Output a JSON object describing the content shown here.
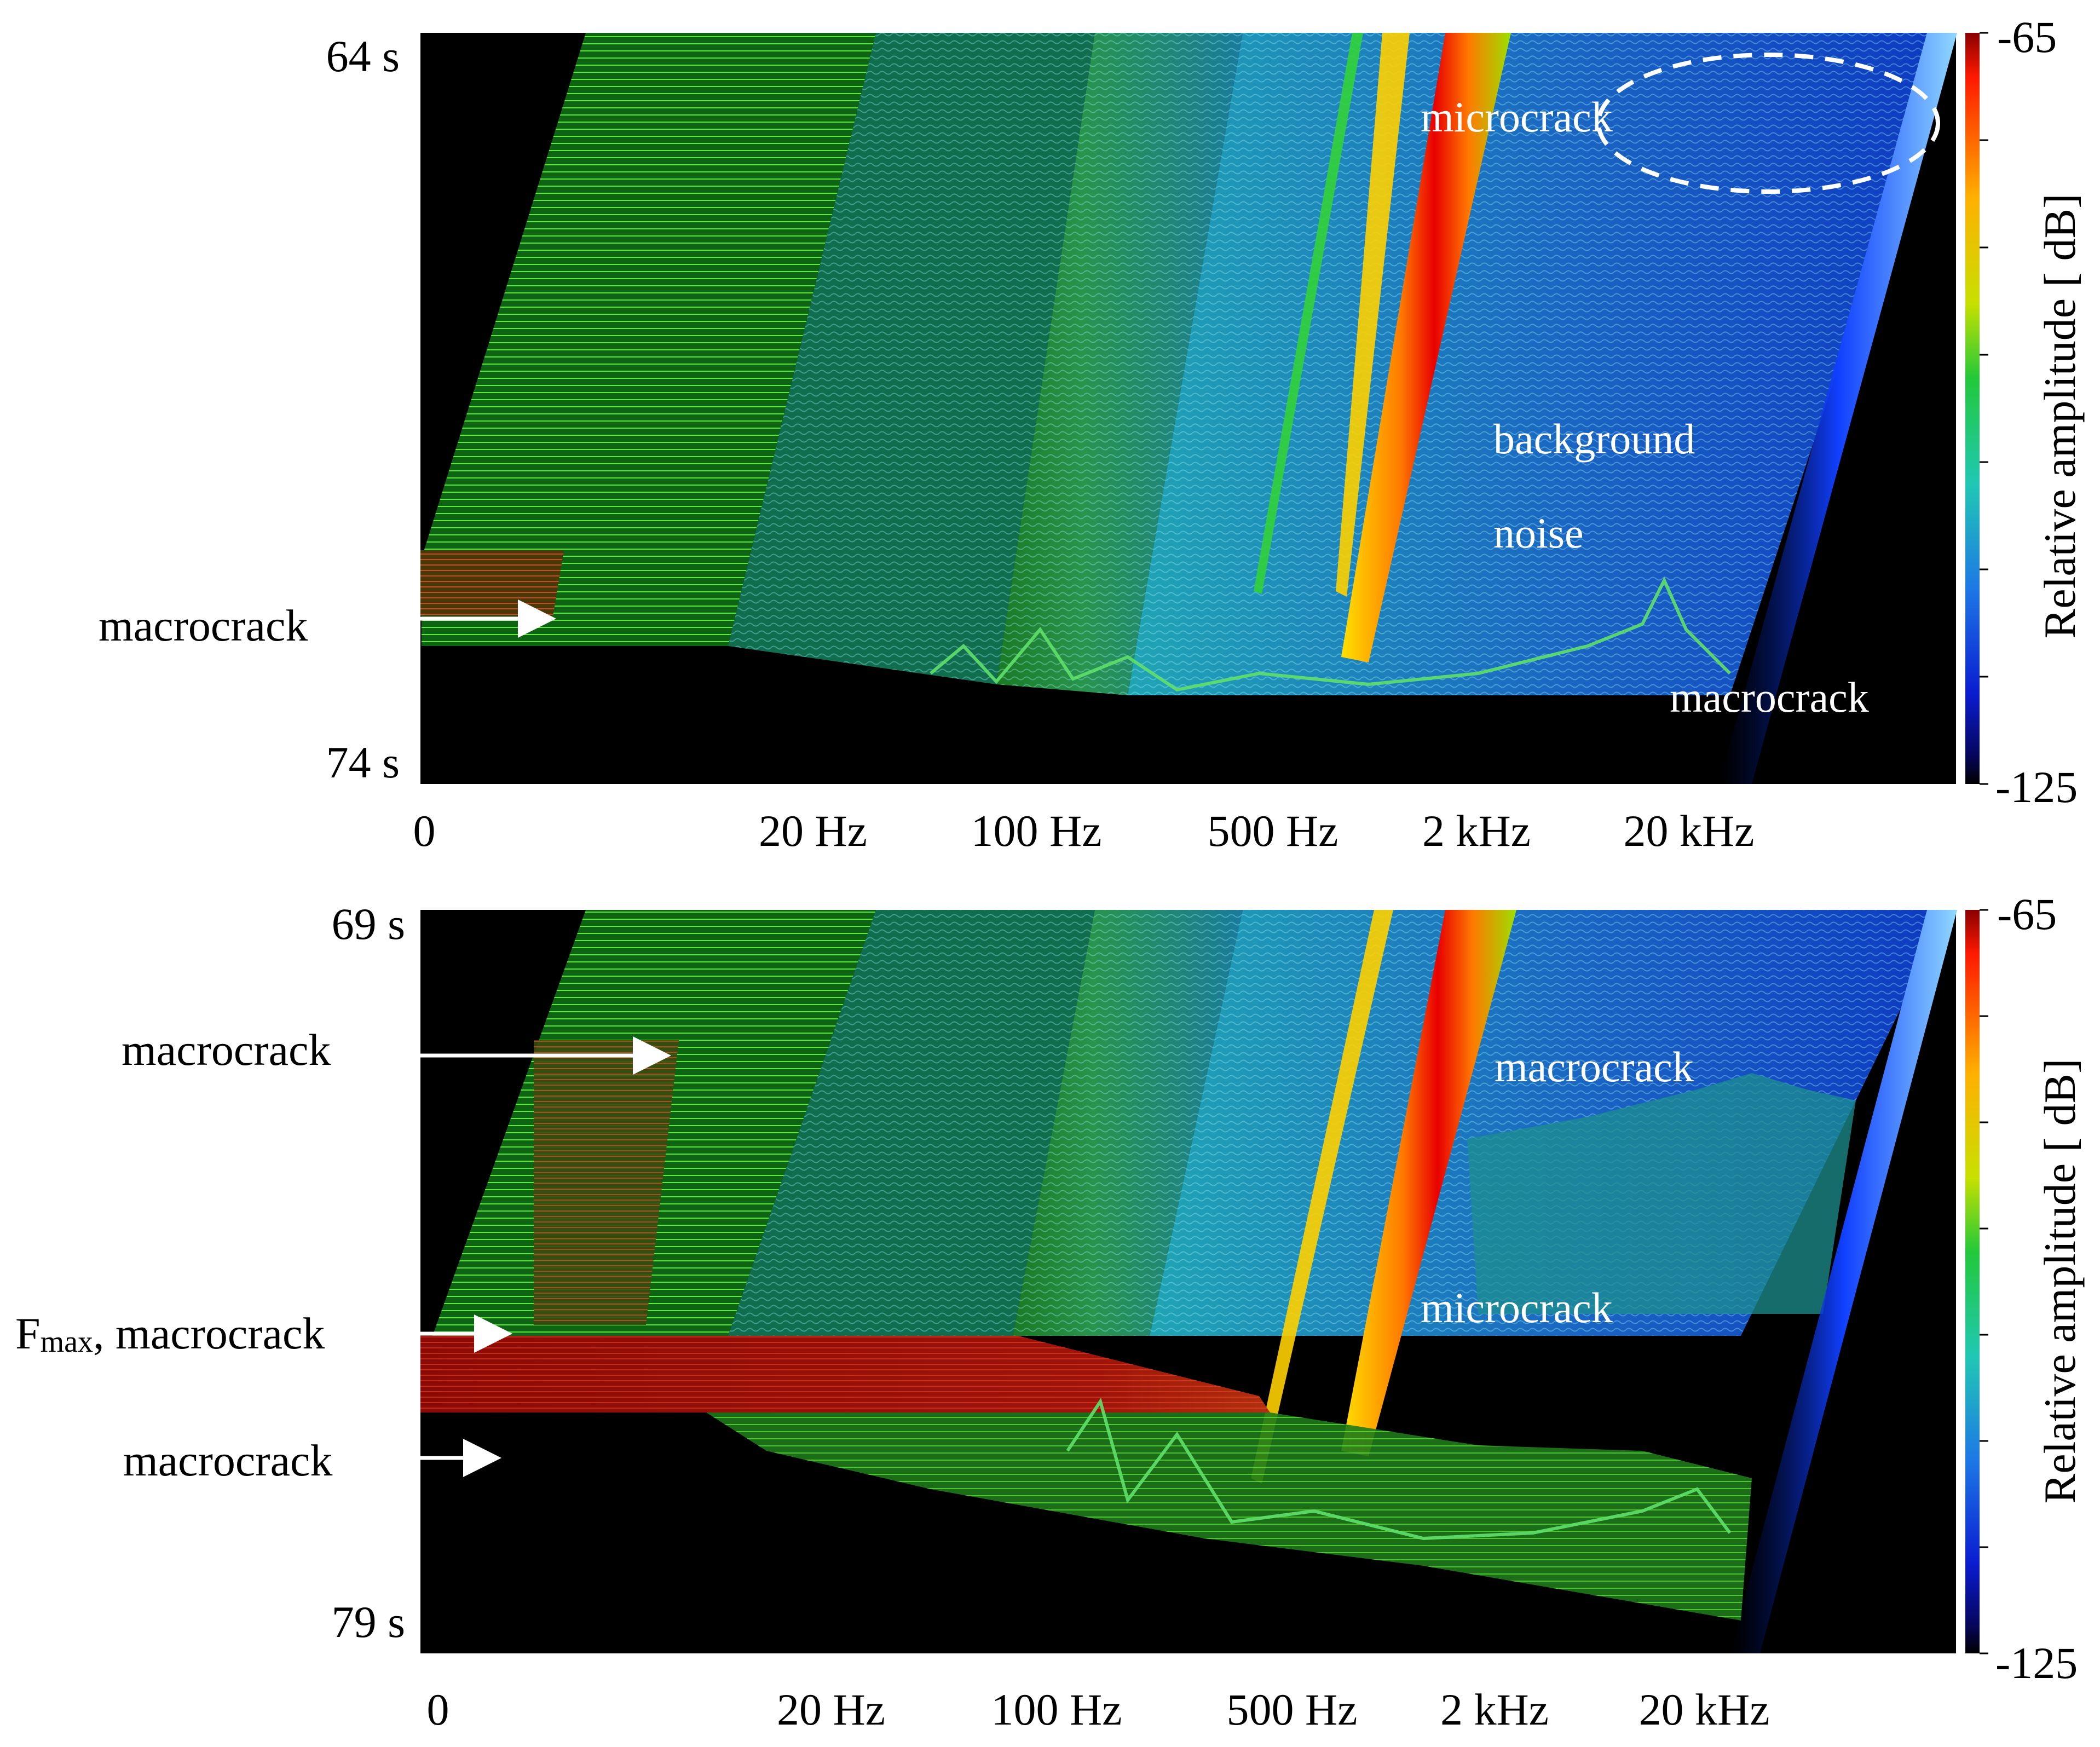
{
  "figure": {
    "panels": [
      {
        "id": "top",
        "time_start": "64 s",
        "time_end": "74 s",
        "x_tick_labels": [
          "0",
          "20 Hz",
          "100 Hz",
          "500 Hz",
          "2 kHz",
          "20 kHz"
        ],
        "colorbar": {
          "label": "Relative amplitude [ dB]",
          "max_label": "-65",
          "min_label": "-125"
        },
        "inner_annotations": [
          {
            "text": "microcrack",
            "highlighted": true
          },
          {
            "text": "background"
          },
          {
            "text": "noise"
          },
          {
            "text": "macrocrack"
          }
        ],
        "outer_annotations": [
          {
            "text": "macrocrack",
            "arrow": true
          }
        ]
      },
      {
        "id": "bottom",
        "time_start": "69 s",
        "time_end": "79 s",
        "x_tick_labels": [
          "0",
          "20 Hz",
          "100 Hz",
          "500 Hz",
          "2 kHz",
          "20 kHz"
        ],
        "colorbar": {
          "label": "Relative amplitude [ dB]",
          "max_label": "-65",
          "min_label": "-125"
        },
        "inner_annotations": [
          {
            "text": "macrocrack"
          },
          {
            "text": "microcrack"
          }
        ],
        "outer_annotations": [
          {
            "text": "macrocrack",
            "arrow": true
          },
          {
            "text_main": "F",
            "text_sub": "max",
            "text_rest": ", macrocrack",
            "arrow": true
          },
          {
            "text": "macrocrack",
            "arrow": true
          }
        ]
      }
    ]
  },
  "chart_data": [
    {
      "type": "heatmap",
      "subtype": "waterfall-spectrogram",
      "title": "",
      "xlabel": "",
      "ylabel": "",
      "x_ticks": [
        "0",
        "20 Hz",
        "100 Hz",
        "500 Hz",
        "2 kHz",
        "20 kHz"
      ],
      "y_range": [
        "64 s",
        "74 s"
      ],
      "color_scale": {
        "min": -125,
        "max": -65,
        "unit": "dB",
        "label": "Relative amplitude [ dB]",
        "colormap": "jet"
      },
      "events": [
        "microcrack",
        "macrocrack",
        "macrocrack"
      ]
    },
    {
      "type": "heatmap",
      "subtype": "waterfall-spectrogram",
      "title": "",
      "xlabel": "",
      "ylabel": "",
      "x_ticks": [
        "0",
        "20 Hz",
        "100 Hz",
        "500 Hz",
        "2 kHz",
        "20 kHz"
      ],
      "y_range": [
        "69 s",
        "79 s"
      ],
      "color_scale": {
        "min": -125,
        "max": -65,
        "unit": "dB",
        "label": "Relative amplitude [ dB]",
        "colormap": "jet"
      },
      "events": [
        "macrocrack",
        "Fmax, macrocrack",
        "macrocrack",
        "macrocrack",
        "microcrack"
      ]
    }
  ]
}
